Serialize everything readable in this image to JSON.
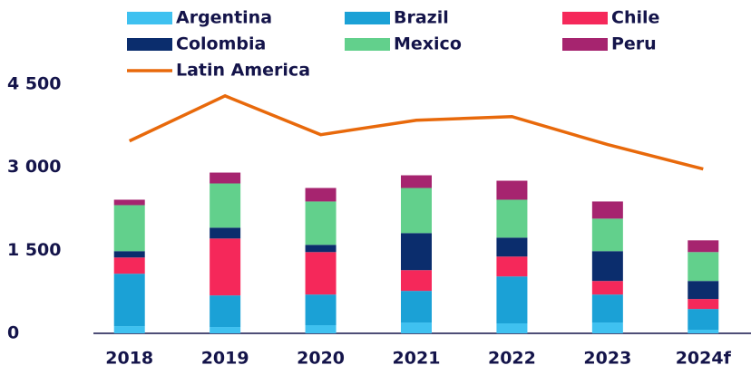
{
  "chart_data": {
    "type": "bar",
    "stacked": true,
    "categories": [
      "2018",
      "2019",
      "2020",
      "2021",
      "2022",
      "2023",
      "2024f"
    ],
    "series": [
      {
        "name": "Argentina",
        "color": "#3fc1f0",
        "values": [
          130,
          114,
          147,
          196,
          180,
          196,
          65
        ]
      },
      {
        "name": "Brazil",
        "color": "#1ba1d6",
        "values": [
          947,
          571,
          554,
          571,
          848,
          505,
          375
        ]
      },
      {
        "name": "Chile",
        "color": "#f5285a",
        "values": [
          293,
          1028,
          767,
          375,
          359,
          245,
          180
        ]
      },
      {
        "name": "Colombia",
        "color": "#0b2d6d",
        "values": [
          115,
          196,
          131,
          669,
          342,
          539,
          326
        ]
      },
      {
        "name": "Mexico",
        "color": "#62d08c",
        "values": [
          831,
          799,
          783,
          815,
          685,
          587,
          522
        ]
      },
      {
        "name": "Peru",
        "color": "#a6246f",
        "values": [
          98,
          196,
          244,
          229,
          343,
          310,
          212
        ]
      },
      {
        "name": "Latin America",
        "color": "#e8690b",
        "type": "line",
        "values": [
          3475,
          4290,
          3589,
          3850,
          3915,
          3410,
          2969
        ]
      }
    ],
    "ylim": [
      0,
      4500
    ],
    "yticks": [
      {
        "value": 0,
        "label": "0"
      },
      {
        "value": 1500,
        "label": "1 500"
      },
      {
        "value": 3000,
        "label": "3 000"
      },
      {
        "value": 4500,
        "label": "4 500"
      }
    ],
    "grid": false
  }
}
